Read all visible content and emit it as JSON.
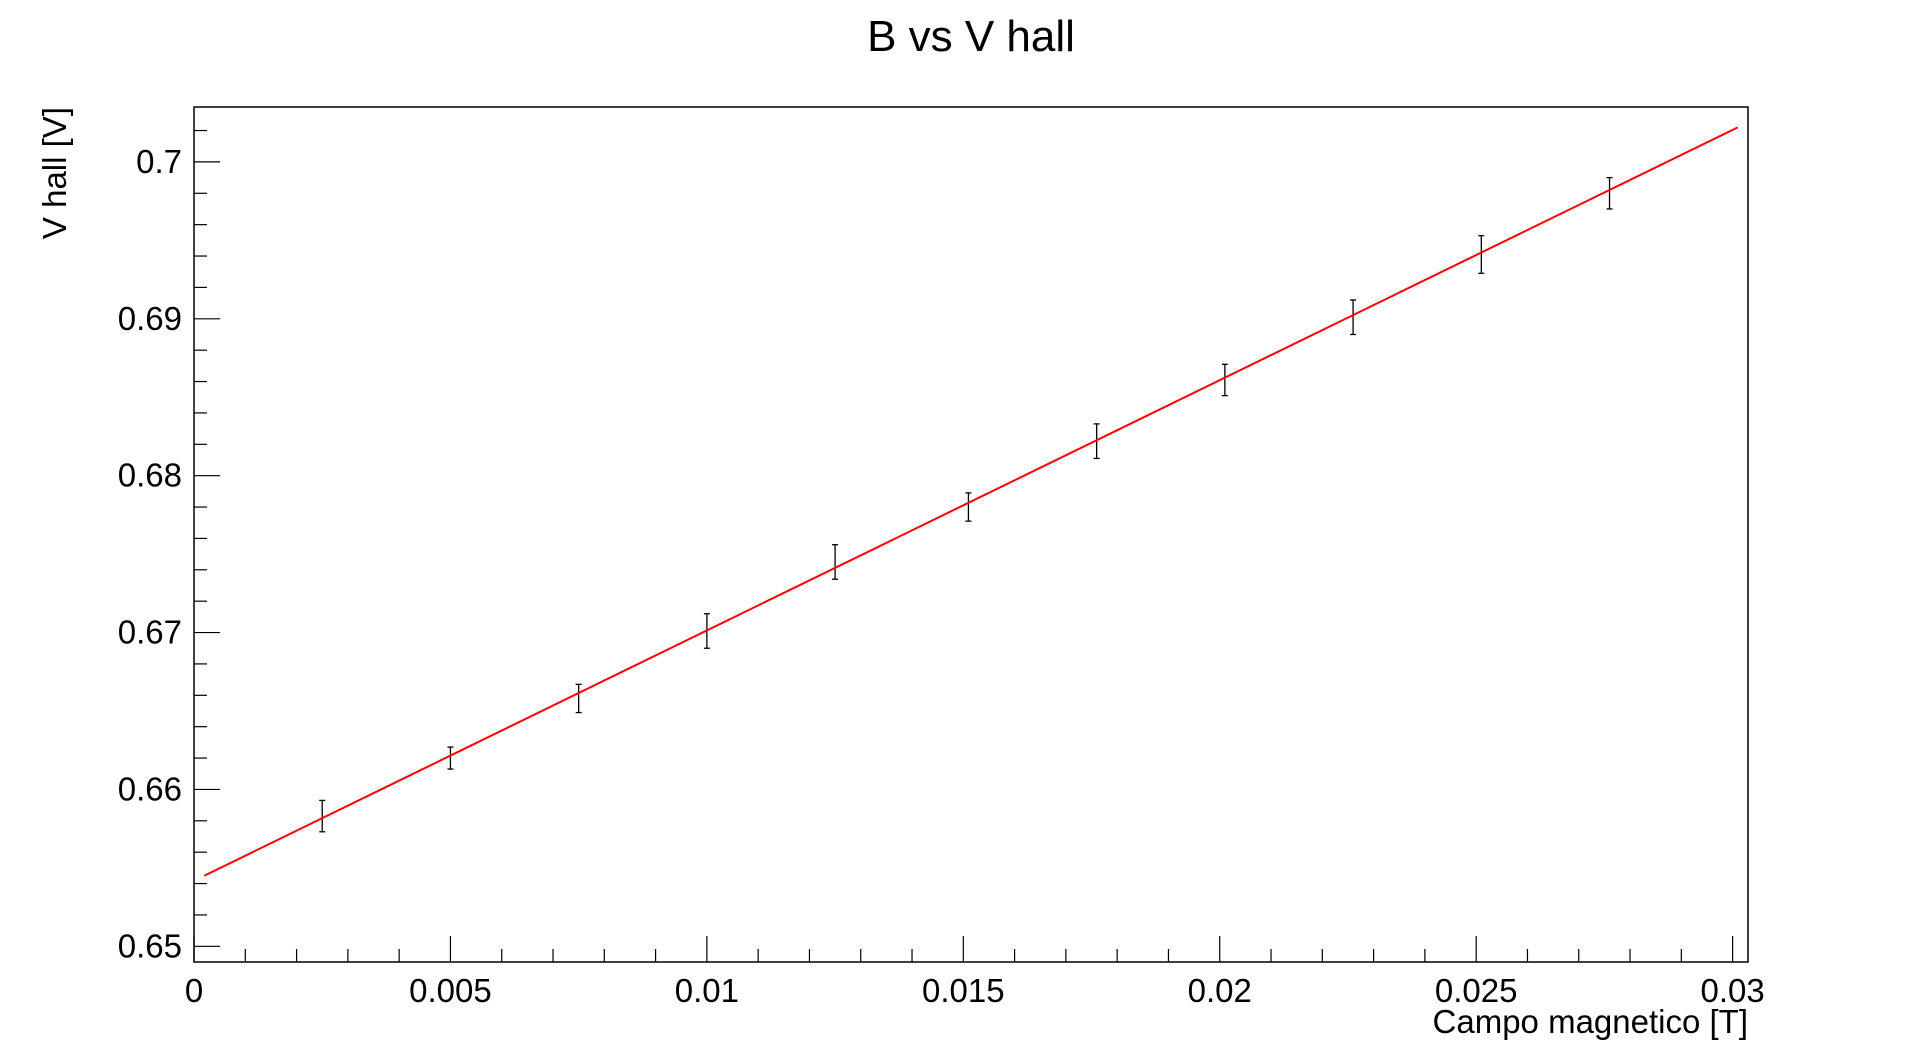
{
  "chart_data": {
    "type": "scatter",
    "title": "B vs V hall",
    "xlabel": "Campo magnetico [T]",
    "ylabel": "V hall [V]",
    "xlim": [
      0,
      0.0303
    ],
    "ylim": [
      0.649,
      0.7035
    ],
    "grid": false,
    "legend": "none",
    "x_ticks": [
      0,
      0.005,
      0.01,
      0.015,
      0.02,
      0.025,
      0.03
    ],
    "x_tick_labels": [
      "0",
      "0.005",
      "0.01",
      "0.015",
      "0.02",
      "0.025",
      "0.03"
    ],
    "y_ticks": [
      0.65,
      0.66,
      0.67,
      0.68,
      0.69,
      0.7
    ],
    "y_tick_labels": [
      "0.65",
      "0.66",
      "0.67",
      "0.68",
      "0.69",
      "0.7"
    ],
    "series": [
      {
        "type": "scatter-errorbars",
        "color": "#000000",
        "x": [
          0.0025,
          0.005,
          0.0075,
          0.01,
          0.0125,
          0.0151,
          0.0176,
          0.0201,
          0.0226,
          0.0251,
          0.0276
        ],
        "y": [
          0.6583,
          0.662,
          0.6658,
          0.6701,
          0.6745,
          0.678,
          0.6822,
          0.6861,
          0.6901,
          0.6941,
          0.698
        ],
        "yerr": [
          0.001,
          0.0007,
          0.0009,
          0.0011,
          0.0011,
          0.0009,
          0.0011,
          0.001,
          0.0011,
          0.0012,
          0.001
        ]
      },
      {
        "type": "line",
        "color": "#ff0000",
        "x": [
          0.0002,
          0.0301
        ],
        "y": [
          0.6545,
          0.7022
        ]
      }
    ]
  }
}
